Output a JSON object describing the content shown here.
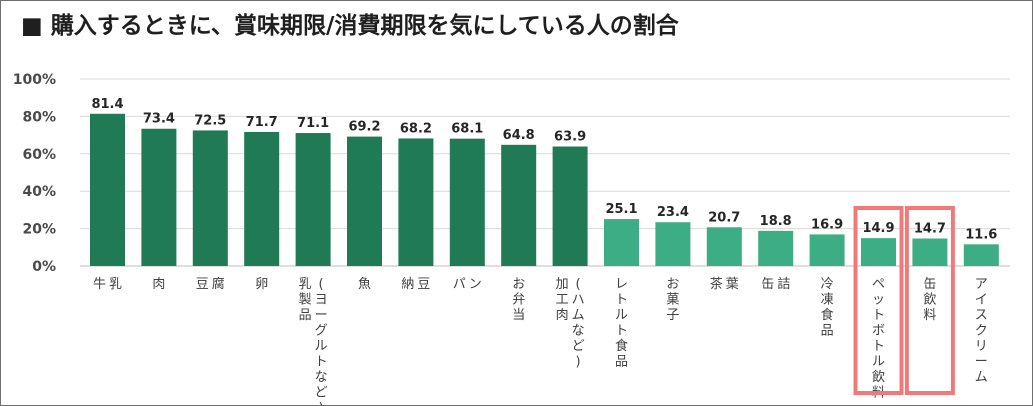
{
  "title": "■ 購入するときに、賞味期限/消費期限を気にしている人の割合",
  "chart_data": {
    "type": "bar",
    "title": "■ 購入するときに、賞味期限/消費期限を気にしている人の割合",
    "xlabel": "",
    "ylabel": "",
    "ylim": [
      0,
      100
    ],
    "yticks": [
      "0%",
      "20%",
      "40%",
      "60%",
      "80%",
      "100%"
    ],
    "ytick_values": [
      0,
      20,
      40,
      60,
      80,
      100
    ],
    "grid": true,
    "legend": "none",
    "categories": [
      "牛乳",
      "肉",
      "豆腐",
      "卵",
      "乳製品(ヨーグルトなど)",
      "魚",
      "納豆",
      "パン",
      "お弁当",
      "加工肉(ハムなど)",
      "レトルト食品",
      "お菓子",
      "茶葉",
      "缶詰",
      "冷凍食品",
      "ペットボトル飲料",
      "缶飲料",
      "アイスクリーム"
    ],
    "category_lines": [
      [
        "牛",
        "乳"
      ],
      [
        "肉"
      ],
      [
        "豆",
        "腐"
      ],
      [
        "卵"
      ],
      [
        "乳製品",
        "(ヨーグルトなど)"
      ],
      [
        "魚"
      ],
      [
        "納",
        "豆"
      ],
      [
        "パ",
        "ン"
      ],
      [
        "お弁当"
      ],
      [
        "加工肉",
        "(ハムなど)"
      ],
      [
        "レトルト食品"
      ],
      [
        "お菓子"
      ],
      [
        "茶",
        "葉"
      ],
      [
        "缶",
        "詰"
      ],
      [
        "冷凍食品"
      ],
      [
        "ペットボトル飲料"
      ],
      [
        "缶飲料"
      ],
      [
        "アイスクリーム"
      ]
    ],
    "values": [
      81.4,
      73.4,
      72.5,
      71.7,
      71.1,
      69.2,
      68.2,
      68.1,
      64.8,
      63.9,
      25.1,
      23.4,
      20.7,
      18.8,
      16.9,
      14.9,
      14.7,
      11.6
    ],
    "value_labels": [
      "81.4",
      "73.4",
      "72.5",
      "71.7",
      "71.1",
      "69.2",
      "68.2",
      "68.1",
      "64.8",
      "63.9",
      "25.1",
      "23.4",
      "20.7",
      "18.8",
      "16.9",
      "14.9",
      "14.7",
      "11.6"
    ],
    "bar_groups": [
      "dark",
      "dark",
      "dark",
      "dark",
      "dark",
      "dark",
      "dark",
      "dark",
      "dark",
      "dark",
      "light",
      "light",
      "light",
      "light",
      "light",
      "light",
      "light",
      "light"
    ],
    "highlighted_categories": [
      "ペットボトル飲料",
      "缶飲料"
    ],
    "colors": {
      "dark": "#217a56",
      "light": "#3dad85",
      "highlight": "#f07a7a",
      "grid": "#d9d9d9",
      "axis": "#bfbfbf"
    }
  }
}
